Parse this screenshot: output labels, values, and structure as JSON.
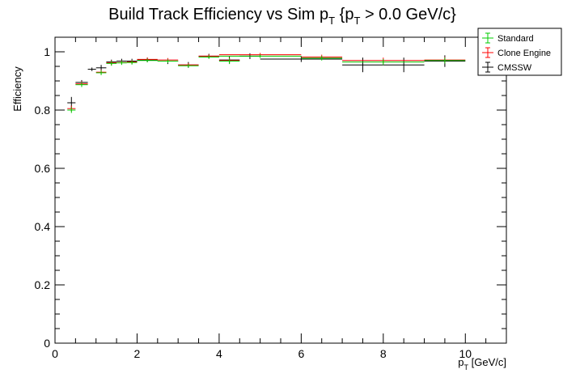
{
  "chart_data": {
    "type": "scatter",
    "title": "Build Track Efficiency vs Sim p",
    "title_sub": "T",
    "title_rest_1": " {p",
    "title_rest_2": " > 0.0 GeV/c}",
    "xlabel_main": "p",
    "xlabel_sub": "T",
    "xlabel_rest": " [GeV/c]",
    "ylabel": "Efficiency",
    "xlim": [
      0,
      11
    ],
    "ylim": [
      0,
      1.05
    ],
    "x_ticks": [
      "0",
      "2",
      "4",
      "6",
      "8",
      "10"
    ],
    "y_ticks": [
      "0",
      "0.2",
      "0.4",
      "0.6",
      "0.8",
      "1"
    ],
    "legend_position": "top-right",
    "series": [
      {
        "name": "CMSSW",
        "color": "#000000",
        "points": [
          {
            "x": 0.4,
            "xerr": 0.1,
            "y": 0.825,
            "yerr": 0.02
          },
          {
            "x": 0.65,
            "xerr": 0.15,
            "y": 0.895,
            "yerr": 0.008
          },
          {
            "x": 0.9,
            "xerr": 0.1,
            "y": 0.94,
            "yerr": 0.006
          },
          {
            "x": 1.125,
            "xerr": 0.125,
            "y": 0.945,
            "yerr": 0.01
          },
          {
            "x": 1.375,
            "xerr": 0.125,
            "y": 0.965,
            "yerr": 0.008
          },
          {
            "x": 1.625,
            "xerr": 0.125,
            "y": 0.968,
            "yerr": 0.008
          },
          {
            "x": 1.875,
            "xerr": 0.125,
            "y": 0.968,
            "yerr": 0.008
          },
          {
            "x": 2.25,
            "xerr": 0.25,
            "y": 0.972,
            "yerr": 0.008
          },
          {
            "x": 2.75,
            "xerr": 0.25,
            "y": 0.968,
            "yerr": 0.01
          },
          {
            "x": 3.25,
            "xerr": 0.25,
            "y": 0.955,
            "yerr": 0.01
          },
          {
            "x": 3.75,
            "xerr": 0.25,
            "y": 0.985,
            "yerr": 0.008
          },
          {
            "x": 4.25,
            "xerr": 0.25,
            "y": 0.972,
            "yerr": 0.012
          },
          {
            "x": 4.75,
            "xerr": 0.25,
            "y": 0.985,
            "yerr": 0.01
          },
          {
            "x": 6.0,
            "xerr": 1.0,
            "y": 0.975,
            "yerr": 0.01
          },
          {
            "x": 7.5,
            "xerr": 0.5,
            "y": 0.955,
            "yerr": 0.025
          },
          {
            "x": 8.5,
            "xerr": 0.5,
            "y": 0.955,
            "yerr": 0.025
          },
          {
            "x": 9.5,
            "xerr": 0.5,
            "y": 0.968,
            "yerr": 0.02
          }
        ]
      },
      {
        "name": "Clone Engine",
        "color": "#ff0000",
        "points": [
          {
            "x": 0.4,
            "xerr": 0.1,
            "y": 0.805,
            "yerr": 0.01
          },
          {
            "x": 0.65,
            "xerr": 0.15,
            "y": 0.89,
            "yerr": 0.008
          },
          {
            "x": 1.125,
            "xerr": 0.125,
            "y": 0.93,
            "yerr": 0.008
          },
          {
            "x": 1.375,
            "xerr": 0.125,
            "y": 0.962,
            "yerr": 0.008
          },
          {
            "x": 1.625,
            "xerr": 0.125,
            "y": 0.963,
            "yerr": 0.007
          },
          {
            "x": 1.875,
            "xerr": 0.125,
            "y": 0.965,
            "yerr": 0.007
          },
          {
            "x": 2.25,
            "xerr": 0.25,
            "y": 0.974,
            "yerr": 0.006
          },
          {
            "x": 2.75,
            "xerr": 0.25,
            "y": 0.972,
            "yerr": 0.006
          },
          {
            "x": 3.25,
            "xerr": 0.25,
            "y": 0.955,
            "yerr": 0.006
          },
          {
            "x": 3.75,
            "xerr": 0.25,
            "y": 0.985,
            "yerr": 0.006
          },
          {
            "x": 4.25,
            "xerr": 0.25,
            "y": 0.97,
            "yerr": 0.01
          },
          {
            "x": 5.0,
            "xerr": 1.0,
            "y": 0.99,
            "yerr": 0.006
          },
          {
            "x": 6.5,
            "xerr": 0.5,
            "y": 0.982,
            "yerr": 0.008
          },
          {
            "x": 8.0,
            "xerr": 1.0,
            "y": 0.97,
            "yerr": 0.01
          },
          {
            "x": 9.5,
            "xerr": 0.5,
            "y": 0.972,
            "yerr": 0.01
          }
        ]
      },
      {
        "name": "Standard",
        "color": "#00cc00",
        "points": [
          {
            "x": 0.4,
            "xerr": 0.1,
            "y": 0.8,
            "yerr": 0.01
          },
          {
            "x": 0.65,
            "xerr": 0.15,
            "y": 0.887,
            "yerr": 0.008
          },
          {
            "x": 1.125,
            "xerr": 0.125,
            "y": 0.928,
            "yerr": 0.008
          },
          {
            "x": 1.375,
            "xerr": 0.125,
            "y": 0.96,
            "yerr": 0.008
          },
          {
            "x": 1.625,
            "xerr": 0.125,
            "y": 0.962,
            "yerr": 0.007
          },
          {
            "x": 1.875,
            "xerr": 0.125,
            "y": 0.963,
            "yerr": 0.007
          },
          {
            "x": 2.25,
            "xerr": 0.25,
            "y": 0.97,
            "yerr": 0.006
          },
          {
            "x": 2.75,
            "xerr": 0.25,
            "y": 0.968,
            "yerr": 0.006
          },
          {
            "x": 3.25,
            "xerr": 0.25,
            "y": 0.952,
            "yerr": 0.006
          },
          {
            "x": 3.75,
            "xerr": 0.25,
            "y": 0.982,
            "yerr": 0.006
          },
          {
            "x": 4.25,
            "xerr": 0.25,
            "y": 0.968,
            "yerr": 0.01
          },
          {
            "x": 5.0,
            "xerr": 1.0,
            "y": 0.985,
            "yerr": 0.006
          },
          {
            "x": 6.5,
            "xerr": 0.5,
            "y": 0.978,
            "yerr": 0.008
          },
          {
            "x": 8.0,
            "xerr": 1.0,
            "y": 0.965,
            "yerr": 0.01
          },
          {
            "x": 9.5,
            "xerr": 0.5,
            "y": 0.97,
            "yerr": 0.01
          }
        ]
      }
    ],
    "legend": [
      {
        "label": "Standard",
        "color": "#00cc00"
      },
      {
        "label": "Clone Engine",
        "color": "#ff0000"
      },
      {
        "label": "CMSSW",
        "color": "#000000"
      }
    ]
  }
}
